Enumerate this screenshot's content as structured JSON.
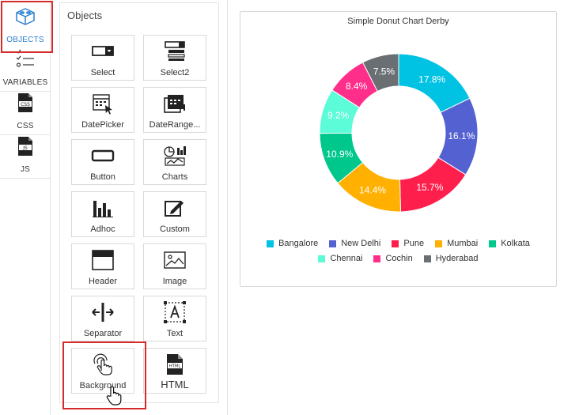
{
  "rail": {
    "items": [
      {
        "label": "OBJECTS",
        "icon": "cube-icon",
        "active": true
      },
      {
        "label": "VARIABLES",
        "icon": "checklist-icon"
      },
      {
        "label": "CSS",
        "icon": "css-file-icon",
        "badge": "CSS"
      },
      {
        "label": "JS",
        "icon": "js-file-icon",
        "badge": "JS"
      }
    ]
  },
  "objects_panel": {
    "title": "Objects",
    "tiles": [
      {
        "label": "Select",
        "icon": "select-icon"
      },
      {
        "label": "Select2",
        "icon": "select2-icon"
      },
      {
        "label": "DatePicker",
        "icon": "calendar-icon"
      },
      {
        "label": "DateRange...",
        "icon": "daterange-icon"
      },
      {
        "label": "Button",
        "icon": "button-icon"
      },
      {
        "label": "Charts",
        "icon": "charts-icon"
      },
      {
        "label": "Adhoc",
        "icon": "adhoc-bars-icon"
      },
      {
        "label": "Custom",
        "icon": "custom-edit-icon"
      },
      {
        "label": "Header",
        "icon": "header-icon"
      },
      {
        "label": "Image",
        "icon": "image-icon"
      },
      {
        "label": "Separator",
        "icon": "separator-icon"
      },
      {
        "label": "Text",
        "icon": "text-icon"
      },
      {
        "label": "Background",
        "icon": "touch-icon"
      },
      {
        "label": "HTML",
        "icon": "html-file-icon",
        "badge": "HTML"
      }
    ]
  },
  "chart_data": {
    "type": "pie",
    "title": "Simple Donut Chart Derby",
    "categories": [
      "Bangalore",
      "New Delhi",
      "Pune",
      "Mumbai",
      "Kolkata",
      "Chennai",
      "Cochin",
      "Hyderabad"
    ],
    "values": [
      17.8,
      16.1,
      15.7,
      14.4,
      10.9,
      9.2,
      8.4,
      7.5
    ],
    "labels": [
      "17.8%",
      "16.1%",
      "15.7%",
      "14.4%",
      "10.9%",
      "9.2%",
      "8.4%",
      "7.5%"
    ],
    "colors": [
      "#00c3e3",
      "#5461d1",
      "#ff1f4c",
      "#ffb000",
      "#00c78c",
      "#5bfcd7",
      "#ff2e8a",
      "#6a6f74"
    ],
    "legend_position": "bottom"
  }
}
